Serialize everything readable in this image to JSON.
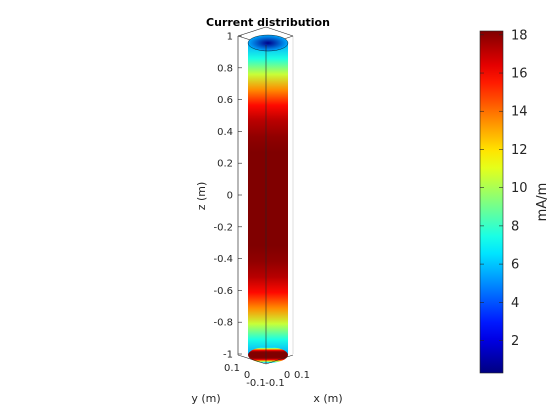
{
  "chart_data": {
    "type": "heatmap",
    "title": "Current distribution",
    "xlabel": "x (m)",
    "ylabel": "y (m)",
    "zlabel": "z (m)",
    "z_ticks": [
      1,
      0.8,
      0.6,
      0.4,
      0.2,
      0,
      -0.2,
      -0.4,
      -0.6,
      -0.8,
      -1
    ],
    "z_tick_labels": [
      "1",
      "0.8",
      "0.6",
      "0.4",
      "0.2",
      "0",
      "-0.2",
      "-0.4",
      "-0.6",
      "-0.8",
      "-1"
    ],
    "zlim": [
      -1,
      1
    ],
    "x_tick_labels": [
      "-0.1",
      "0",
      "0.1"
    ],
    "y_tick_labels": [
      "0.1",
      "0",
      "-0.1"
    ],
    "colorbar": {
      "label": "mA/m",
      "range": [
        0.3,
        18.2
      ],
      "ticks": [
        18,
        16,
        14,
        12,
        10,
        8,
        6,
        4,
        2
      ],
      "tick_labels": [
        "18",
        "16",
        "14",
        "12",
        "10",
        "8",
        "6",
        "4",
        "2"
      ],
      "colormap": "jet"
    },
    "profile": {
      "z": [
        -1,
        -0.9,
        -0.8,
        -0.7,
        -0.6,
        -0.5,
        -0.4,
        -0.3,
        -0.2,
        -0.1,
        0,
        0.1,
        0.2,
        0.3,
        0.4,
        0.5,
        0.6,
        0.7,
        0.8,
        0.9,
        1
      ],
      "current_mA_per_m": [
        5.5,
        7.5,
        10.5,
        13.5,
        15.8,
        17.2,
        17.9,
        18.2,
        18.2,
        18.2,
        18.2,
        18.2,
        18.2,
        18.2,
        17.9,
        17.2,
        15.8,
        13.5,
        10.5,
        7.5,
        5.5
      ],
      "top_end_cap_center": 0.5
    }
  }
}
